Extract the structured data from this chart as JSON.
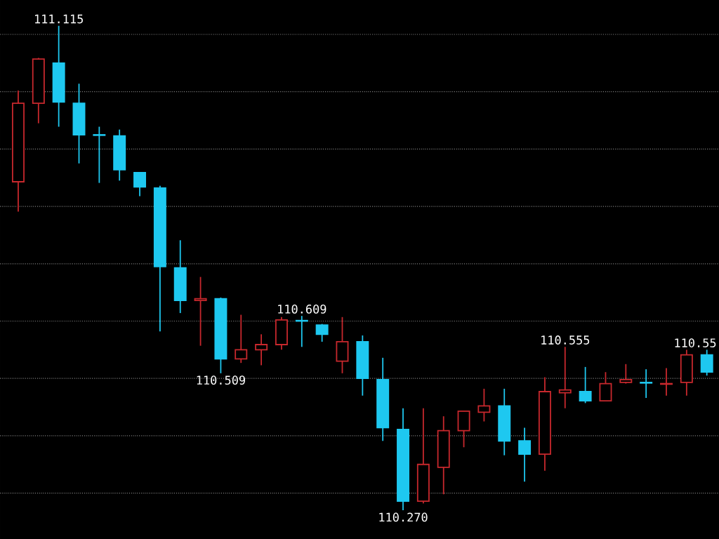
{
  "chart_data": {
    "type": "candlestick",
    "categories": [
      null,
      null,
      null,
      null,
      null,
      null,
      null,
      null,
      null,
      null,
      null,
      null,
      null,
      null,
      null,
      null,
      null,
      null,
      null,
      null,
      null,
      null,
      null,
      null,
      null,
      null,
      null,
      null,
      null,
      null,
      null,
      null,
      null,
      null,
      null
    ],
    "ohlc": [
      [
        110.843,
        111.002,
        110.791,
        110.98
      ],
      [
        110.98,
        111.059,
        110.945,
        111.057
      ],
      [
        111.05,
        111.115,
        110.939,
        110.982
      ],
      [
        110.98,
        111.014,
        110.875,
        110.925
      ],
      [
        110.925,
        110.939,
        110.841,
        110.924
      ],
      [
        110.923,
        110.934,
        110.845,
        110.864
      ],
      [
        110.859,
        110.859,
        110.818,
        110.834
      ],
      [
        110.832,
        110.836,
        110.582,
        110.695
      ],
      [
        110.693,
        110.741,
        110.614,
        110.636
      ],
      [
        110.636,
        110.677,
        110.557,
        110.639
      ],
      [
        110.639,
        110.641,
        110.509,
        110.534
      ],
      [
        110.534,
        110.611,
        110.527,
        110.55
      ],
      [
        110.55,
        110.577,
        110.523,
        110.559
      ],
      [
        110.559,
        110.607,
        110.55,
        110.602
      ],
      [
        110.601,
        110.609,
        110.555,
        110.6
      ],
      [
        110.593,
        110.595,
        110.564,
        110.577
      ],
      [
        110.53,
        110.607,
        110.509,
        110.564
      ],
      [
        110.564,
        110.575,
        110.47,
        110.5
      ],
      [
        110.498,
        110.536,
        110.391,
        110.414
      ],
      [
        110.411,
        110.448,
        110.27,
        110.286
      ],
      [
        110.286,
        110.448,
        110.282,
        110.35
      ],
      [
        110.345,
        110.434,
        110.298,
        110.409
      ],
      [
        110.409,
        110.443,
        110.38,
        110.443
      ],
      [
        110.441,
        110.482,
        110.425,
        110.452
      ],
      [
        110.452,
        110.482,
        110.366,
        110.391
      ],
      [
        110.391,
        110.414,
        110.32,
        110.368
      ],
      [
        110.368,
        110.502,
        110.339,
        110.477
      ],
      [
        110.475,
        110.555,
        110.448,
        110.48
      ],
      [
        110.477,
        110.52,
        110.457,
        110.461
      ],
      [
        110.461,
        110.511,
        110.461,
        110.491
      ],
      [
        110.493,
        110.525,
        110.491,
        110.498
      ],
      [
        110.493,
        110.516,
        110.466,
        110.492
      ],
      [
        110.49,
        110.518,
        110.47,
        110.491
      ],
      [
        110.493,
        110.55,
        110.47,
        110.541
      ],
      [
        110.541,
        110.55,
        110.505,
        110.511
      ]
    ],
    "colors": [
      "#c8282d",
      "#c8282d",
      "#1ec8f0",
      "#1ec8f0",
      "#1ec8f0",
      "#1ec8f0",
      "#1ec8f0",
      "#1ec8f0",
      "#1ec8f0",
      "#c8282d",
      "#1ec8f0",
      "#c8282d",
      "#c8282d",
      "#c8282d",
      "#1ec8f0",
      "#1ec8f0",
      "#c8282d",
      "#1ec8f0",
      "#1ec8f0",
      "#1ec8f0",
      "#c8282d",
      "#c8282d",
      "#c8282d",
      "#c8282d",
      "#1ec8f0",
      "#1ec8f0",
      "#c8282d",
      "#c8282d",
      "#1ec8f0",
      "#c8282d",
      "#c8282d",
      "#1ec8f0",
      "#c8282d",
      "#c8282d",
      "#1ec8f0"
    ],
    "ylim": [
      110.22,
      111.16
    ],
    "yticks": [
      {
        "value": 110.3,
        "label": null
      },
      {
        "value": 110.4,
        "label": null
      },
      {
        "value": 110.5,
        "label": null
      },
      {
        "value": 110.6,
        "label": null
      },
      {
        "value": 110.7,
        "label": null
      },
      {
        "value": 110.8,
        "label": null
      },
      {
        "value": 110.9,
        "label": null
      },
      {
        "value": 111.0,
        "label": null
      },
      {
        "value": 111.1,
        "label": null
      }
    ],
    "grid": "y",
    "annotations": [
      {
        "text": "111.115",
        "y": 111.115
      },
      {
        "text": "110.509",
        "y": 110.509
      },
      {
        "text": "110.609",
        "y": 110.609
      },
      {
        "text": "110.270",
        "y": 110.27
      },
      {
        "text": "110.555",
        "y": 110.555
      },
      {
        "text": "110.55",
        "y": 110.55
      }
    ]
  }
}
